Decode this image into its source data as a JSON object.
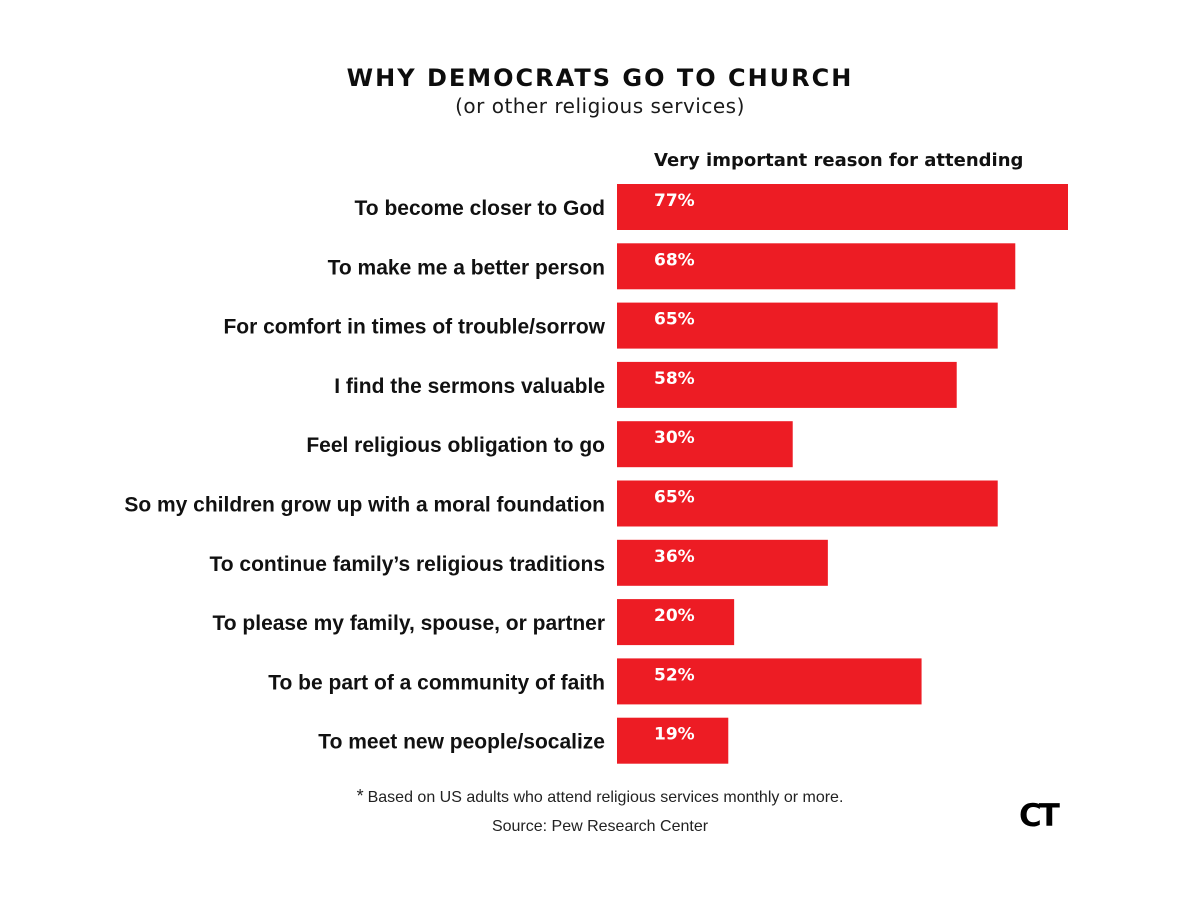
{
  "header": {
    "title": "WHY DEMOCRATS GO TO CHURCH",
    "subtitle": "(or other religious services)"
  },
  "chart_data": {
    "type": "bar",
    "orientation": "horizontal",
    "title": "WHY DEMOCRATS GO TO CHURCH",
    "subtitle": "(or other religious services)",
    "series": [
      {
        "name": "Very important reason for attending",
        "values": [
          77,
          68,
          65,
          58,
          30,
          65,
          36,
          20,
          52,
          19
        ]
      }
    ],
    "categories": [
      "To become closer to God",
      "To make me a better person",
      "For comfort in times of trouble/sorrow",
      "I find the sermons valuable",
      "Feel religious obligation to go",
      "So my children grow up with a moral foundation",
      "To continue family’s religious traditions",
      "To please my family, spouse, or partner",
      "To be part of a community of faith",
      "To meet new people/socalize"
    ],
    "value_labels": [
      "77%",
      "68%",
      "65%",
      "58%",
      "30%",
      "65%",
      "36%",
      "20%",
      "52%",
      "19%"
    ],
    "value_suffix": "%",
    "bar_color": "#ed1c24",
    "grid": false,
    "legend": "none"
  },
  "footer": {
    "footnote_marker": "*",
    "footnote": "Based on US adults who attend religious services monthly or more.",
    "source": "Source: Pew Research Center",
    "logo_text": "CT"
  }
}
